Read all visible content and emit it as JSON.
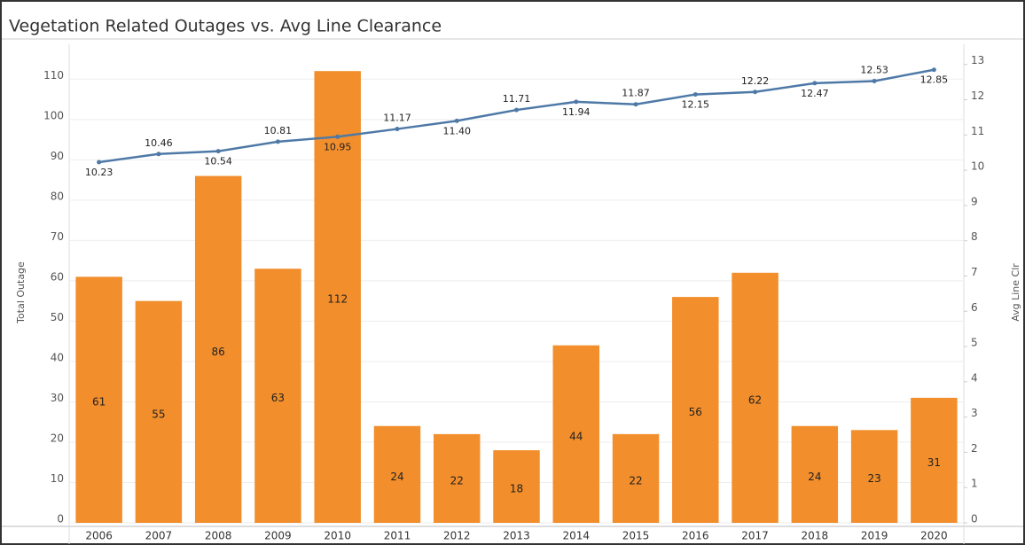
{
  "chart_data": {
    "type": "combo",
    "title": "Vegetation Related Outages vs. Avg Line Clearance",
    "y_label": "Total Outage",
    "y2_label": "Avg Line Clr",
    "categories": [
      "2006",
      "2007",
      "2008",
      "2009",
      "2010",
      "2011",
      "2012",
      "2013",
      "2014",
      "2015",
      "2016",
      "2017",
      "2018",
      "2019",
      "2020"
    ],
    "series": [
      {
        "mark": "bar",
        "color": "#f28e2b",
        "values": [
          61,
          55,
          86,
          63,
          112,
          24,
          22,
          18,
          44,
          22,
          56,
          62,
          24,
          23,
          31
        ]
      },
      {
        "mark": "line",
        "axis": "y2",
        "color": "#4e79a7",
        "values": [
          10.23,
          10.46,
          10.54,
          10.81,
          10.95,
          11.17,
          11.4,
          11.71,
          11.94,
          11.87,
          12.15,
          12.22,
          12.47,
          12.53,
          12.85
        ],
        "value_labels": [
          "10.23",
          "10.46",
          "10.54",
          "10.81",
          "10.95",
          "11.17",
          "11.40",
          "11.71",
          "11.94",
          "11.87",
          "12.15",
          "12.22",
          "12.47",
          "12.53",
          "12.85"
        ]
      }
    ],
    "ylim": [
      0,
      116
    ],
    "yticks": [
      0,
      10,
      20,
      30,
      40,
      50,
      60,
      70,
      80,
      90,
      100,
      110
    ],
    "y2lim": [
      0,
      13.27
    ],
    "y2ticks": [
      0,
      1,
      2,
      3,
      4,
      5,
      6,
      7,
      8,
      9,
      10,
      11,
      12,
      13
    ],
    "grid": true
  }
}
